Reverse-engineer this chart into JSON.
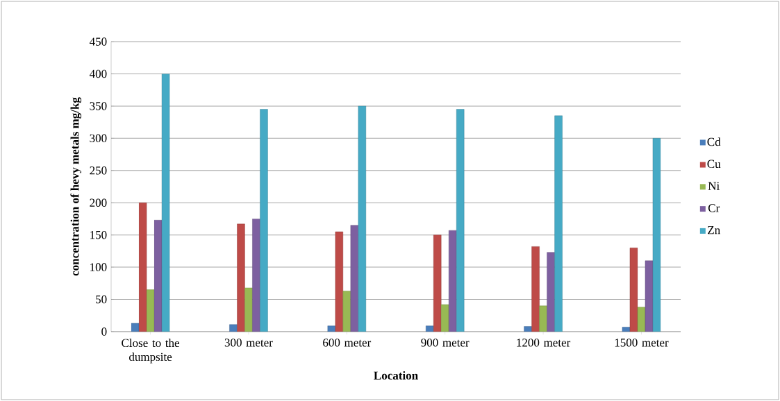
{
  "chart_data": {
    "type": "bar",
    "xlabel": "Location",
    "ylabel": "concentration  of hevy metals mg/kg",
    "categories": [
      "Close to the dumpsite",
      "300 meter",
      "600 meter",
      "900 meter",
      "1200 meter",
      "1500 meter"
    ],
    "series": [
      {
        "name": "Cd",
        "color": "#4a7ebb",
        "values": [
          13,
          11,
          9,
          9,
          8,
          7
        ]
      },
      {
        "name": "Cu",
        "color": "#be4b48",
        "values": [
          200,
          167,
          155,
          150,
          132,
          130
        ]
      },
      {
        "name": "Ni",
        "color": "#98b954",
        "values": [
          65,
          68,
          63,
          42,
          40,
          38
        ]
      },
      {
        "name": "Cr",
        "color": "#7d60a0",
        "values": [
          173,
          175,
          165,
          157,
          123,
          110
        ]
      },
      {
        "name": "Zn",
        "color": "#46aac5",
        "values": [
          400,
          345,
          350,
          345,
          335,
          300
        ]
      }
    ],
    "ylim": [
      0,
      450
    ],
    "yticks": [
      0,
      50,
      100,
      150,
      200,
      250,
      300,
      350,
      400,
      450
    ],
    "grid": "y",
    "legend": "right"
  }
}
